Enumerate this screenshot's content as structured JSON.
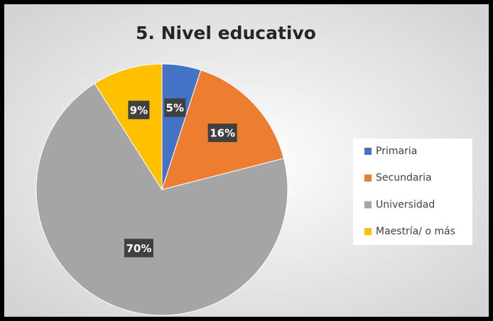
{
  "chart_data": {
    "type": "pie",
    "title": "5. Nivel educativo",
    "categories": [
      "Primaria",
      "Secundaria",
      "Universidad",
      "Maestría/ o más"
    ],
    "values": [
      5,
      16,
      70,
      9
    ],
    "value_labels": [
      "5%",
      "16%",
      "70%",
      "9%"
    ],
    "colors": [
      "#4472c4",
      "#ed7d31",
      "#a5a5a5",
      "#ffc000"
    ],
    "legend": "right"
  }
}
